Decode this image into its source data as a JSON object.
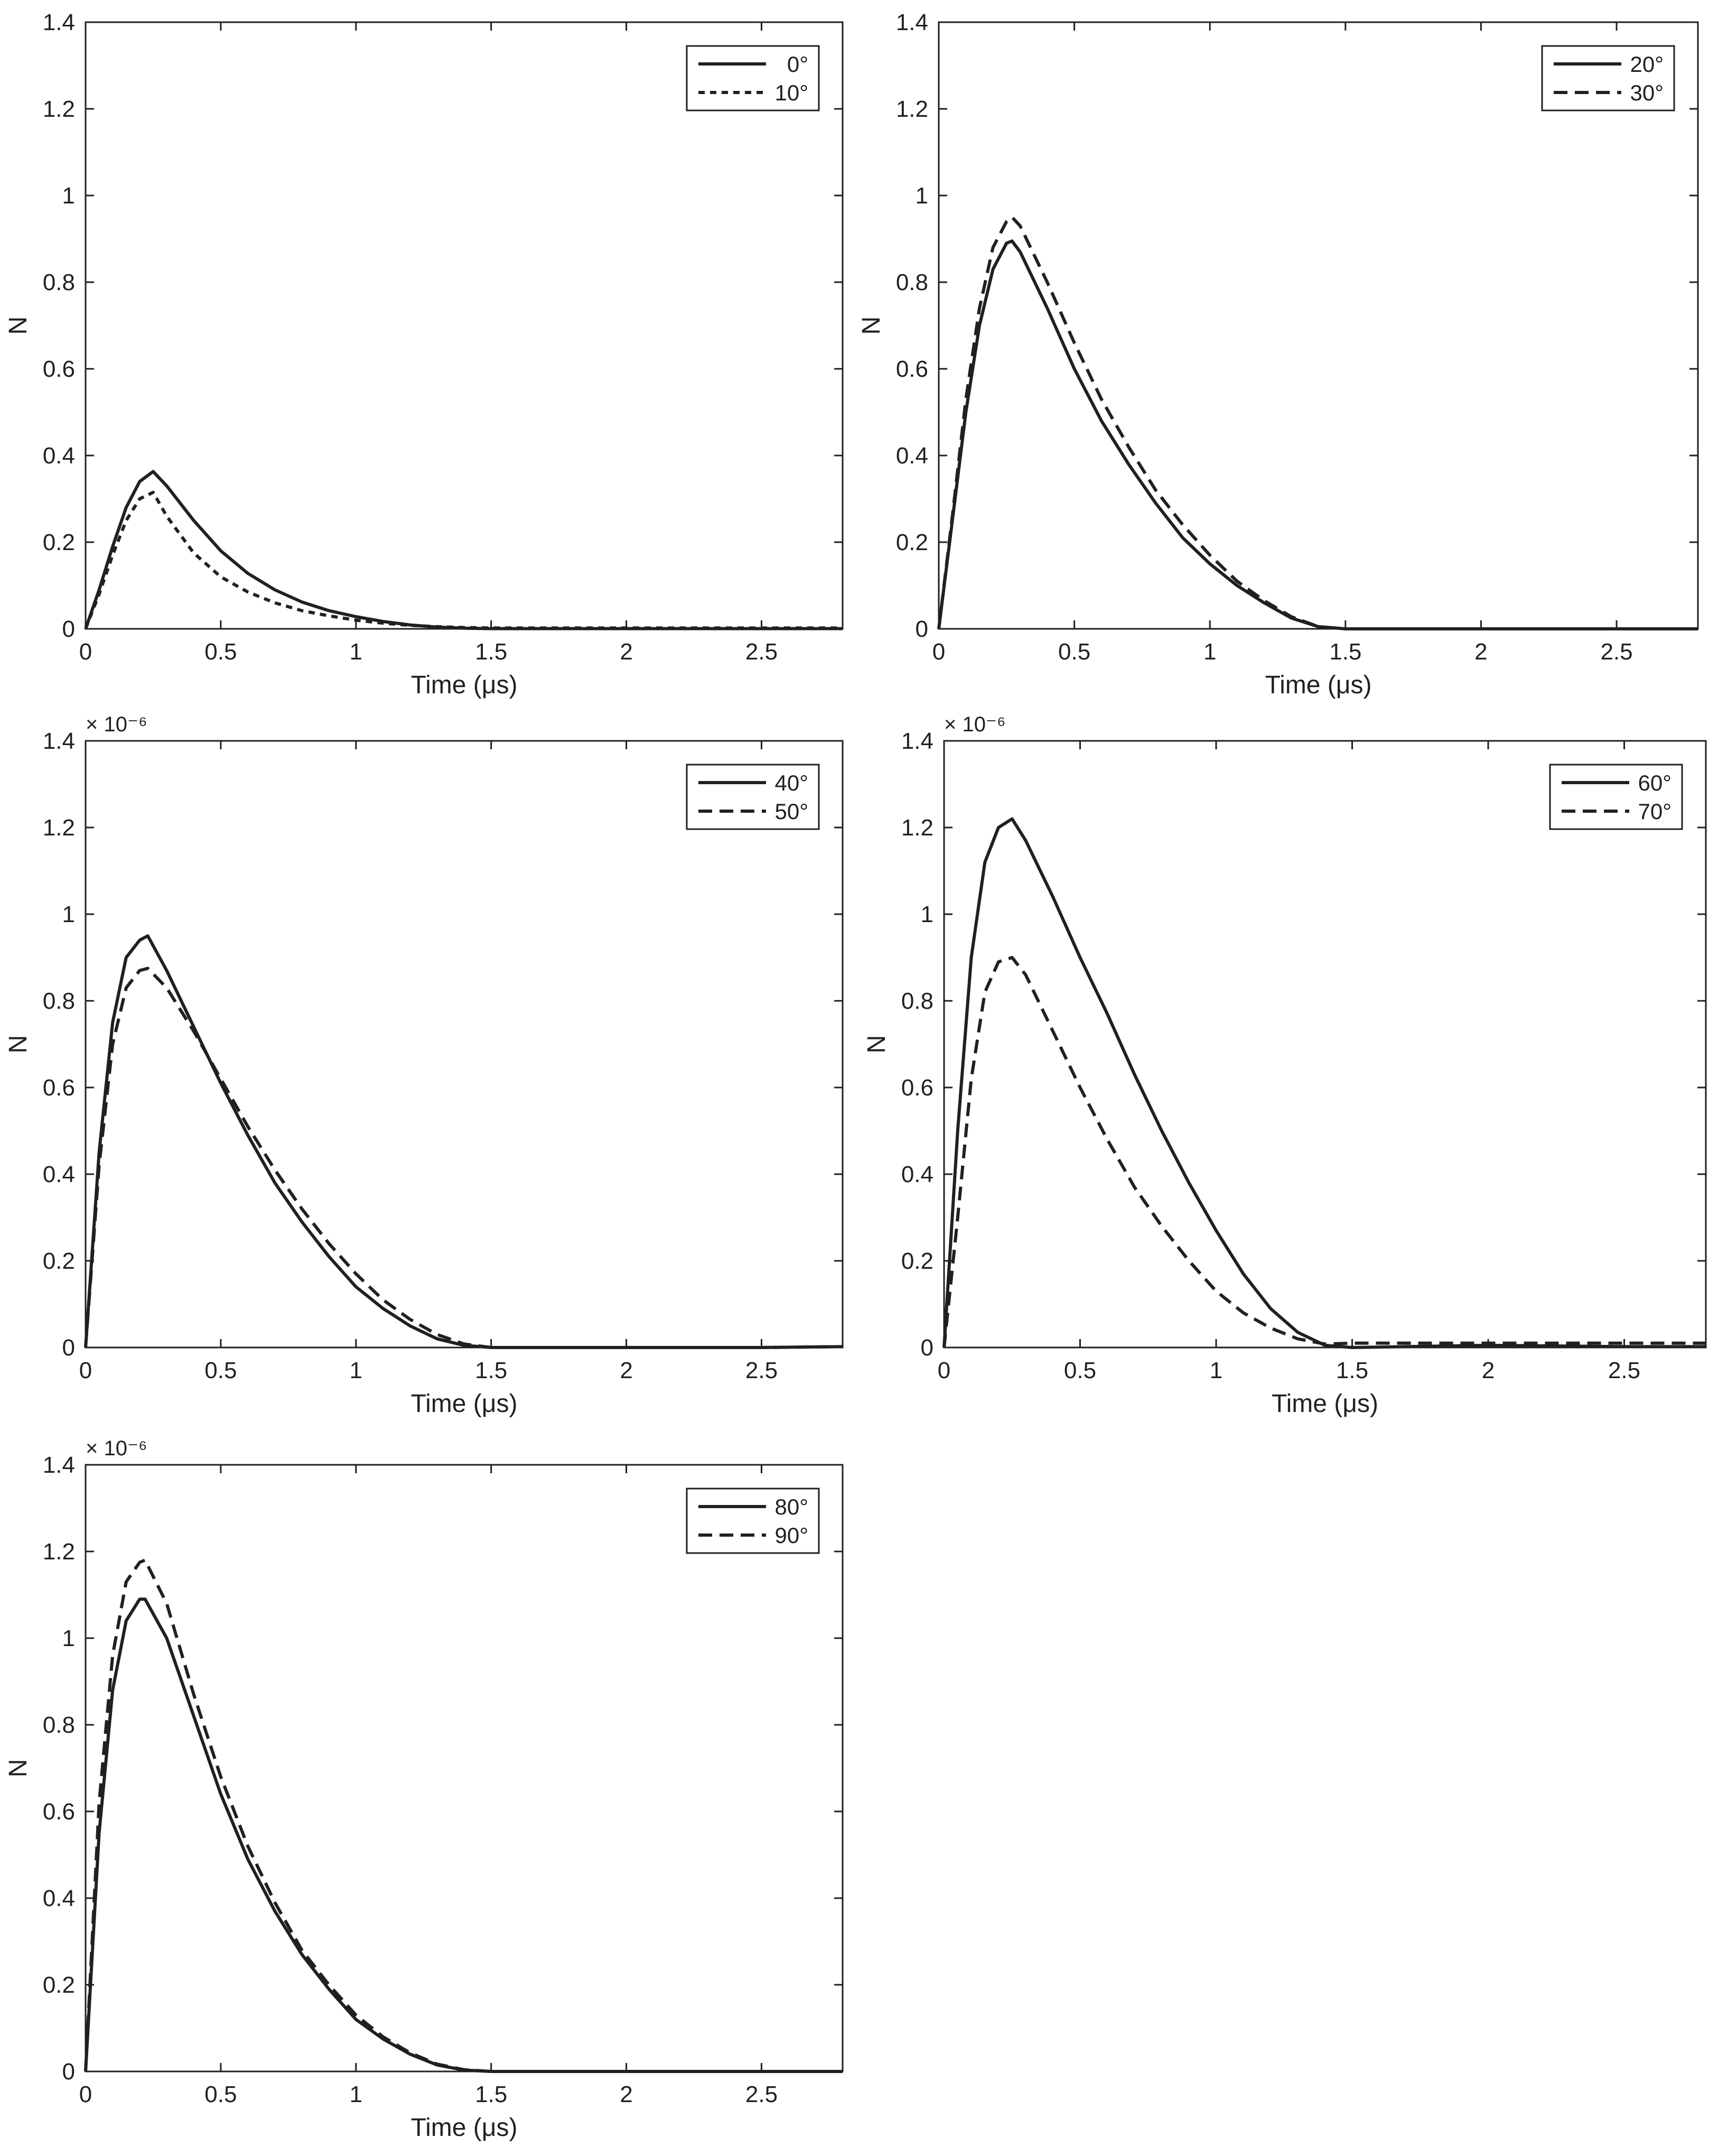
{
  "chart_data": [
    {
      "type": "line",
      "xlabel": "Time (μs)",
      "ylabel": "N",
      "exponent_label": "",
      "xlim": [
        0,
        2.8
      ],
      "ylim": [
        0,
        1.4
      ],
      "xticks": [
        "0",
        "0.5",
        "1",
        "1.5",
        "2",
        "2.5"
      ],
      "yticks": [
        "0",
        "0.2",
        "0.4",
        "0.6",
        "0.8",
        "1",
        "1.2",
        "1.4"
      ],
      "legend_position": "top-right",
      "series": [
        {
          "name": "0°",
          "style": "solid",
          "color": "#231f20",
          "x": [
            0,
            0.05,
            0.1,
            0.15,
            0.2,
            0.25,
            0.3,
            0.4,
            0.5,
            0.6,
            0.7,
            0.8,
            0.9,
            1.0,
            1.1,
            1.2,
            1.3,
            1.4,
            1.5,
            2.0,
            2.5,
            2.8
          ],
          "y": [
            0,
            0.09,
            0.19,
            0.28,
            0.34,
            0.363,
            0.33,
            0.25,
            0.18,
            0.128,
            0.09,
            0.062,
            0.042,
            0.028,
            0.017,
            0.009,
            0.004,
            0.0015,
            0.0005,
            0.0005,
            0.0005,
            0.0005
          ]
        },
        {
          "name": "10°",
          "style": "dotted",
          "color": "#231f20",
          "x": [
            0,
            0.05,
            0.1,
            0.15,
            0.2,
            0.25,
            0.3,
            0.4,
            0.5,
            0.6,
            0.7,
            0.8,
            0.9,
            1.0,
            1.1,
            1.2,
            1.3,
            1.4,
            1.5,
            2.0,
            2.5,
            2.8
          ],
          "y": [
            0,
            0.08,
            0.17,
            0.25,
            0.3,
            0.315,
            0.26,
            0.175,
            0.12,
            0.085,
            0.06,
            0.042,
            0.03,
            0.02,
            0.013,
            0.008,
            0.005,
            0.003,
            0.002,
            0.002,
            0.002,
            0.002
          ]
        }
      ]
    },
    {
      "type": "line",
      "xlabel": "Time (μs)",
      "ylabel": "N",
      "exponent_label": "",
      "xlim": [
        0,
        2.8
      ],
      "ylim": [
        0,
        1.4
      ],
      "xticks": [
        "0",
        "0.5",
        "1",
        "1.5",
        "2",
        "2.5"
      ],
      "yticks": [
        "0",
        "0.2",
        "0.4",
        "0.6",
        "0.8",
        "1",
        "1.2",
        "1.4"
      ],
      "legend_position": "top-right",
      "series": [
        {
          "name": "20°",
          "style": "solid",
          "color": "#231f20",
          "x": [
            0,
            0.05,
            0.1,
            0.15,
            0.2,
            0.25,
            0.27,
            0.3,
            0.4,
            0.5,
            0.6,
            0.7,
            0.8,
            0.9,
            1.0,
            1.1,
            1.2,
            1.3,
            1.4,
            1.5,
            2.0,
            2.5,
            2.8
          ],
          "y": [
            0,
            0.25,
            0.5,
            0.7,
            0.83,
            0.89,
            0.895,
            0.87,
            0.74,
            0.6,
            0.48,
            0.38,
            0.29,
            0.21,
            0.15,
            0.1,
            0.06,
            0.025,
            0.005,
            0,
            0,
            0,
            0
          ]
        },
        {
          "name": "30°",
          "style": "dashed",
          "color": "#231f20",
          "x": [
            0,
            0.05,
            0.1,
            0.15,
            0.2,
            0.25,
            0.27,
            0.3,
            0.4,
            0.5,
            0.6,
            0.7,
            0.8,
            0.9,
            1.0,
            1.1,
            1.2,
            1.3,
            1.4,
            1.5,
            2.0,
            2.5,
            2.8
          ],
          "y": [
            0,
            0.26,
            0.53,
            0.74,
            0.88,
            0.94,
            0.95,
            0.93,
            0.8,
            0.66,
            0.53,
            0.42,
            0.32,
            0.24,
            0.17,
            0.11,
            0.065,
            0.028,
            0.005,
            0,
            0,
            0,
            0
          ]
        }
      ]
    },
    {
      "type": "line",
      "xlabel": "Time (μs)",
      "ylabel": "N",
      "exponent_label": "× 10⁻⁶",
      "xlim": [
        0,
        2.8
      ],
      "ylim": [
        0,
        1.4
      ],
      "xticks": [
        "0",
        "0.5",
        "1",
        "1.5",
        "2",
        "2.5"
      ],
      "yticks": [
        "0",
        "0.2",
        "0.4",
        "0.6",
        "0.8",
        "1",
        "1.2",
        "1.4"
      ],
      "legend_position": "top-right",
      "series": [
        {
          "name": "40°",
          "style": "solid",
          "color": "#231f20",
          "x": [
            0,
            0.05,
            0.1,
            0.15,
            0.2,
            0.23,
            0.3,
            0.4,
            0.5,
            0.6,
            0.7,
            0.8,
            0.9,
            1.0,
            1.1,
            1.2,
            1.3,
            1.4,
            1.5,
            2.0,
            2.5,
            2.8
          ],
          "y": [
            0,
            0.45,
            0.75,
            0.9,
            0.94,
            0.95,
            0.87,
            0.74,
            0.61,
            0.49,
            0.38,
            0.29,
            0.21,
            0.14,
            0.09,
            0.05,
            0.02,
            0.005,
            0,
            0,
            0,
            0.002
          ]
        },
        {
          "name": "50°",
          "style": "dashed",
          "color": "#231f20",
          "x": [
            0,
            0.05,
            0.1,
            0.15,
            0.2,
            0.23,
            0.3,
            0.4,
            0.5,
            0.6,
            0.7,
            0.8,
            0.9,
            1.0,
            1.1,
            1.2,
            1.3,
            1.4,
            1.5,
            2.0,
            2.5,
            2.8
          ],
          "y": [
            0,
            0.42,
            0.7,
            0.83,
            0.87,
            0.875,
            0.83,
            0.73,
            0.62,
            0.51,
            0.41,
            0.32,
            0.24,
            0.17,
            0.11,
            0.065,
            0.03,
            0.008,
            0,
            0,
            0,
            0.002
          ]
        }
      ]
    },
    {
      "type": "line",
      "xlabel": "Time (μs)",
      "ylabel": "N",
      "exponent_label": "× 10⁻⁶",
      "xlim": [
        0,
        2.8
      ],
      "ylim": [
        0,
        1.4
      ],
      "xticks": [
        "0",
        "0.5",
        "1",
        "1.5",
        "2",
        "2.5"
      ],
      "yticks": [
        "0",
        "0.2",
        "0.4",
        "0.6",
        "0.8",
        "1",
        "1.2",
        "1.4"
      ],
      "legend_position": "top-right",
      "series": [
        {
          "name": "60°",
          "style": "solid",
          "color": "#231f20",
          "x": [
            0,
            0.05,
            0.1,
            0.15,
            0.2,
            0.25,
            0.3,
            0.4,
            0.5,
            0.6,
            0.7,
            0.8,
            0.9,
            1.0,
            1.1,
            1.2,
            1.3,
            1.4,
            1.5,
            2.0,
            2.5,
            2.8
          ],
          "y": [
            0,
            0.5,
            0.9,
            1.12,
            1.2,
            1.22,
            1.17,
            1.04,
            0.9,
            0.77,
            0.63,
            0.5,
            0.38,
            0.27,
            0.17,
            0.09,
            0.035,
            0.005,
            0,
            0.005,
            0.002,
            0.002
          ]
        },
        {
          "name": "70°",
          "style": "dashed",
          "color": "#231f20",
          "x": [
            0,
            0.05,
            0.1,
            0.15,
            0.2,
            0.25,
            0.3,
            0.4,
            0.5,
            0.6,
            0.7,
            0.8,
            0.9,
            1.0,
            1.1,
            1.2,
            1.3,
            1.4,
            1.5,
            2.0,
            2.5,
            2.8
          ],
          "y": [
            0,
            0.3,
            0.62,
            0.82,
            0.89,
            0.9,
            0.86,
            0.73,
            0.6,
            0.48,
            0.37,
            0.28,
            0.2,
            0.13,
            0.08,
            0.045,
            0.02,
            0.008,
            0.01,
            0.01,
            0.01,
            0.01
          ]
        }
      ]
    },
    {
      "type": "line",
      "xlabel": "Time (μs)",
      "ylabel": "N",
      "exponent_label": "× 10⁻⁶",
      "xlim": [
        0,
        2.8
      ],
      "ylim": [
        0,
        1.4
      ],
      "xticks": [
        "0",
        "0.5",
        "1",
        "1.5",
        "2",
        "2.5"
      ],
      "yticks": [
        "0",
        "0.2",
        "0.4",
        "0.6",
        "0.8",
        "1",
        "1.2",
        "1.4"
      ],
      "legend_position": "top-right",
      "series": [
        {
          "name": "80°",
          "style": "solid",
          "color": "#231f20",
          "x": [
            0,
            0.05,
            0.1,
            0.15,
            0.2,
            0.22,
            0.3,
            0.4,
            0.5,
            0.6,
            0.7,
            0.8,
            0.9,
            1.0,
            1.1,
            1.2,
            1.3,
            1.4,
            1.5,
            2.0,
            2.5,
            2.8
          ],
          "y": [
            0,
            0.55,
            0.88,
            1.04,
            1.09,
            1.09,
            1.0,
            0.82,
            0.64,
            0.49,
            0.37,
            0.27,
            0.19,
            0.12,
            0.075,
            0.04,
            0.015,
            0.003,
            0,
            0,
            0,
            0
          ]
        },
        {
          "name": "90°",
          "style": "dashed",
          "color": "#231f20",
          "x": [
            0,
            0.05,
            0.1,
            0.15,
            0.2,
            0.22,
            0.3,
            0.4,
            0.5,
            0.6,
            0.7,
            0.8,
            0.9,
            1.0,
            1.1,
            1.2,
            1.3,
            1.4,
            1.5,
            2.0,
            2.5,
            2.8
          ],
          "y": [
            0,
            0.62,
            0.96,
            1.13,
            1.175,
            1.18,
            1.08,
            0.87,
            0.68,
            0.52,
            0.39,
            0.28,
            0.2,
            0.13,
            0.08,
            0.043,
            0.017,
            0.004,
            0,
            0,
            0,
            0
          ]
        }
      ]
    }
  ]
}
